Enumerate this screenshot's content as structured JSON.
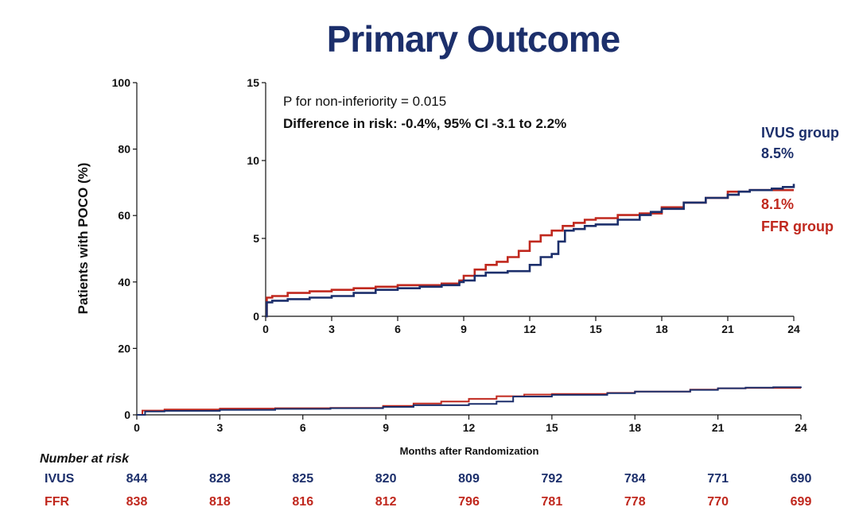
{
  "title": "Primary Outcome",
  "colors": {
    "ivus": "#1c2f6b",
    "ffr": "#c0281e",
    "axis": "#111111"
  },
  "chart_data": [
    {
      "type": "line",
      "panel": "main",
      "ylabel": "Patients with POCO (%)",
      "xlabel": "Months after Randomization",
      "xlim": [
        0,
        24
      ],
      "ylim": [
        0,
        100
      ],
      "xticks": [
        0,
        3,
        6,
        9,
        12,
        15,
        18,
        21,
        24
      ],
      "yticks": [
        0,
        20,
        40,
        60,
        80,
        100
      ],
      "series": [
        {
          "name": "IVUS",
          "color": "#1c2f6b",
          "x": [
            0,
            0.3,
            1,
            3,
            5,
            7,
            8.9,
            10,
            12,
            13,
            13.6,
            15,
            17,
            18,
            20,
            21,
            22,
            23,
            24
          ],
          "y": [
            0,
            1.0,
            1.2,
            1.5,
            1.8,
            2.0,
            2.4,
            2.9,
            3.3,
            4.0,
            5.5,
            6.0,
            6.5,
            7.0,
            7.5,
            8.0,
            8.2,
            8.3,
            8.5
          ]
        },
        {
          "name": "FFR",
          "color": "#c0281e",
          "x": [
            0,
            0.2,
            1,
            3,
            5,
            7,
            8.9,
            10,
            11,
            12,
            13,
            14,
            15,
            17,
            18,
            20,
            21,
            22,
            24
          ],
          "y": [
            0,
            1.3,
            1.6,
            1.9,
            2.0,
            2.1,
            2.7,
            3.4,
            4.0,
            4.8,
            5.6,
            6.1,
            6.3,
            6.6,
            7.0,
            7.6,
            8.0,
            8.1,
            8.1
          ]
        }
      ]
    },
    {
      "type": "line",
      "panel": "inset",
      "xlim": [
        0,
        24
      ],
      "ylim": [
        0,
        15
      ],
      "xticks": [
        0,
        3,
        6,
        9,
        12,
        15,
        18,
        21,
        24
      ],
      "yticks": [
        0,
        5,
        10,
        15
      ],
      "annotations": [
        "P for non-inferiority = 0.015",
        "Difference in risk: -0.4%, 95% CI -3.1 to 2.2%"
      ],
      "labels": {
        "ivus_name": "IVUS group",
        "ivus_value": "8.5%",
        "ffr_value": "8.1%",
        "ffr_name": "FFR group"
      },
      "series": [
        {
          "name": "IVUS",
          "color": "#1c2f6b",
          "x": [
            0,
            0.05,
            0.3,
            1,
            2,
            3,
            4,
            5,
            6,
            7,
            8,
            8.8,
            9,
            9.5,
            10,
            11,
            12,
            12.5,
            13,
            13.3,
            13.6,
            14,
            14.5,
            15,
            16,
            17,
            17.5,
            18,
            19,
            20,
            21,
            21.5,
            22,
            22.5,
            23,
            23.5,
            24
          ],
          "y": [
            0,
            0.9,
            1.0,
            1.1,
            1.2,
            1.3,
            1.5,
            1.7,
            1.8,
            1.9,
            2.0,
            2.2,
            2.3,
            2.6,
            2.8,
            2.9,
            3.3,
            3.8,
            4.0,
            4.8,
            5.5,
            5.6,
            5.8,
            5.9,
            6.2,
            6.5,
            6.7,
            6.9,
            7.3,
            7.6,
            7.8,
            8.0,
            8.1,
            8.1,
            8.2,
            8.3,
            8.5
          ]
        },
        {
          "name": "FFR",
          "color": "#c0281e",
          "x": [
            0,
            0.05,
            0.3,
            1,
            2,
            3,
            4,
            5,
            6,
            7,
            8,
            8.8,
            9,
            9.5,
            10,
            10.5,
            11,
            11.5,
            12,
            12.5,
            13,
            13.5,
            14,
            14.5,
            15,
            16,
            17,
            18,
            19,
            20,
            21,
            22,
            23,
            24
          ],
          "y": [
            0,
            1.2,
            1.3,
            1.5,
            1.6,
            1.7,
            1.8,
            1.9,
            2.0,
            2.0,
            2.1,
            2.3,
            2.6,
            3.0,
            3.3,
            3.5,
            3.8,
            4.2,
            4.8,
            5.2,
            5.5,
            5.8,
            6.0,
            6.2,
            6.3,
            6.5,
            6.6,
            7.0,
            7.3,
            7.6,
            8.0,
            8.1,
            8.1,
            8.1
          ]
        }
      ]
    }
  ],
  "risk_table": {
    "header": "Number at risk",
    "rows": [
      {
        "label": "IVUS",
        "color": "#1c2f6b",
        "values": [
          "844",
          "828",
          "825",
          "820",
          "809",
          "792",
          "784",
          "771",
          "690"
        ]
      },
      {
        "label": "FFR",
        "color": "#c0281e",
        "values": [
          "838",
          "818",
          "816",
          "812",
          "796",
          "781",
          "778",
          "770",
          "699"
        ]
      }
    ]
  }
}
